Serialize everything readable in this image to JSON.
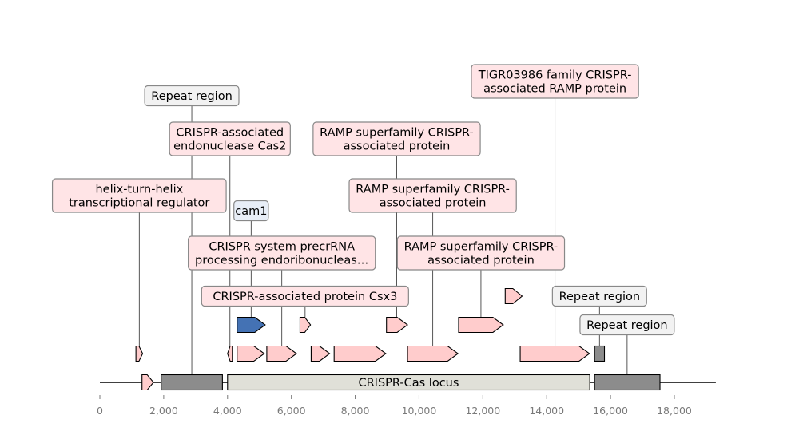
{
  "colors": {
    "cds_default": "#ffcccc",
    "cds_highlight": "#4472b4",
    "repeat": "#8c8c8c",
    "locus": "#e0e0d8",
    "label_pink": "#ffe4e6",
    "label_gray": "#f2f2f2",
    "label_blue": "#e8eef7"
  },
  "chart_data": {
    "type": "gene-map",
    "x_axis": {
      "range": [
        0,
        19300
      ],
      "ticks": [
        0,
        2000,
        4000,
        6000,
        8000,
        10000,
        12000,
        14000,
        16000,
        18000
      ],
      "tick_labels": [
        "0",
        "2,000",
        "4,000",
        "6,000",
        "8,000",
        "10,000",
        "12,000",
        "14,000",
        "16,000",
        "18,000"
      ]
    },
    "backbone": {
      "start": 0,
      "end": 19300
    },
    "features": [
      {
        "id": "f1",
        "start": 1320,
        "end": 1680,
        "strand": 1,
        "track": 0,
        "kind": "cds",
        "color": "#ffcccc"
      },
      {
        "id": "f2",
        "start": 1920,
        "end": 3840,
        "strand": 0,
        "track": 0,
        "kind": "repeat",
        "color": "#8c8c8c",
        "label": "Repeat region",
        "label_level": 7,
        "label_anchor": 2880,
        "label_x": 2880
      },
      {
        "id": "f3",
        "start": 4000,
        "end": 15350,
        "strand": 0,
        "track": 0,
        "kind": "locus",
        "color": "#e0e0d8",
        "inline_label": "CRISPR-Cas locus"
      },
      {
        "id": "f4",
        "start": 15500,
        "end": 17550,
        "strand": 0,
        "track": 0,
        "kind": "repeat",
        "color": "#8c8c8c",
        "label": "Repeat region",
        "label_level": 1,
        "label_anchor": 16520,
        "label_x": 16520
      },
      {
        "id": "f5",
        "start": 1130,
        "end": 1340,
        "strand": 1,
        "track": 1,
        "kind": "cds",
        "color": "#ffcccc",
        "label": "helix-turn-helix\ntranscriptional regulator",
        "label_level": 4,
        "label_anchor": 1235,
        "label_x": 1235
      },
      {
        "id": "f6",
        "start": 4000,
        "end": 4150,
        "strand": -1,
        "track": 1,
        "kind": "cds",
        "color": "#ffcccc",
        "label": "CRISPR-associated\nendonuclease Cas2",
        "label_level": 6,
        "label_anchor": 4075,
        "label_x": 4075
      },
      {
        "id": "f7",
        "start": 4300,
        "end": 5150,
        "strand": 1,
        "track": 1,
        "kind": "cds",
        "color": "#ffcccc",
        "label": "CRISPR system precrRNA\nprocessing endoribonucleas…",
        "label_level": 3,
        "label_anchor": 5700,
        "label_x": 5700
      },
      {
        "id": "f8",
        "start": 5230,
        "end": 6160,
        "strand": 1,
        "track": 1,
        "kind": "cds",
        "color": "#ffcccc"
      },
      {
        "id": "f9",
        "start": 6620,
        "end": 7200,
        "strand": 1,
        "track": 1,
        "kind": "cds",
        "color": "#ffcccc"
      },
      {
        "id": "f10",
        "start": 7340,
        "end": 8960,
        "strand": 1,
        "track": 1,
        "kind": "cds",
        "color": "#ffcccc"
      },
      {
        "id": "f11",
        "start": 9640,
        "end": 11220,
        "strand": 1,
        "track": 1,
        "kind": "cds",
        "color": "#ffcccc",
        "label": "RAMP superfamily CRISPR-\nassociated protein",
        "label_level": 4,
        "label_anchor": 10430,
        "label_x": 10430
      },
      {
        "id": "f12",
        "start": 13170,
        "end": 15340,
        "strand": 1,
        "track": 1,
        "kind": "cds",
        "color": "#ffcccc",
        "label": "TIGR03986 family CRISPR-\nassociated RAMP protein",
        "label_level": 8,
        "label_anchor": 14260,
        "label_x": 14260
      },
      {
        "id": "f13",
        "start": 15500,
        "end": 15810,
        "strand": 0,
        "track": 1,
        "kind": "repeat",
        "color": "#8c8c8c",
        "label": "Repeat region",
        "label_level": 2,
        "label_anchor": 15655,
        "label_x": 15655
      },
      {
        "id": "f14",
        "start": 4300,
        "end": 5180,
        "strand": 1,
        "track": 2,
        "kind": "cds",
        "color": "#4472b4",
        "label": "cam1",
        "label_level": 5,
        "label_anchor": 4740,
        "label_x": 4740
      },
      {
        "id": "f15",
        "start": 6270,
        "end": 6600,
        "strand": 1,
        "track": 2,
        "kind": "cds",
        "color": "#ffcccc",
        "label": "CRISPR-associated protein Csx3",
        "label_level": 2,
        "label_anchor": 6430,
        "label_x": 6430
      },
      {
        "id": "f16",
        "start": 8980,
        "end": 9640,
        "strand": 1,
        "track": 2,
        "kind": "cds",
        "color": "#ffcccc",
        "label": "RAMP superfamily CRISPR-\nassociated protein",
        "label_level": 6,
        "label_anchor": 9300,
        "label_x": 9300
      },
      {
        "id": "f17",
        "start": 11240,
        "end": 12640,
        "strand": 1,
        "track": 2,
        "kind": "cds",
        "color": "#ffcccc",
        "label": "RAMP superfamily CRISPR-\nassociated protein",
        "label_level": 3,
        "label_anchor": 11940,
        "label_x": 11940
      },
      {
        "id": "f18",
        "start": 12700,
        "end": 13230,
        "strand": 1,
        "track": 3,
        "kind": "cds",
        "color": "#ffcccc"
      }
    ]
  }
}
